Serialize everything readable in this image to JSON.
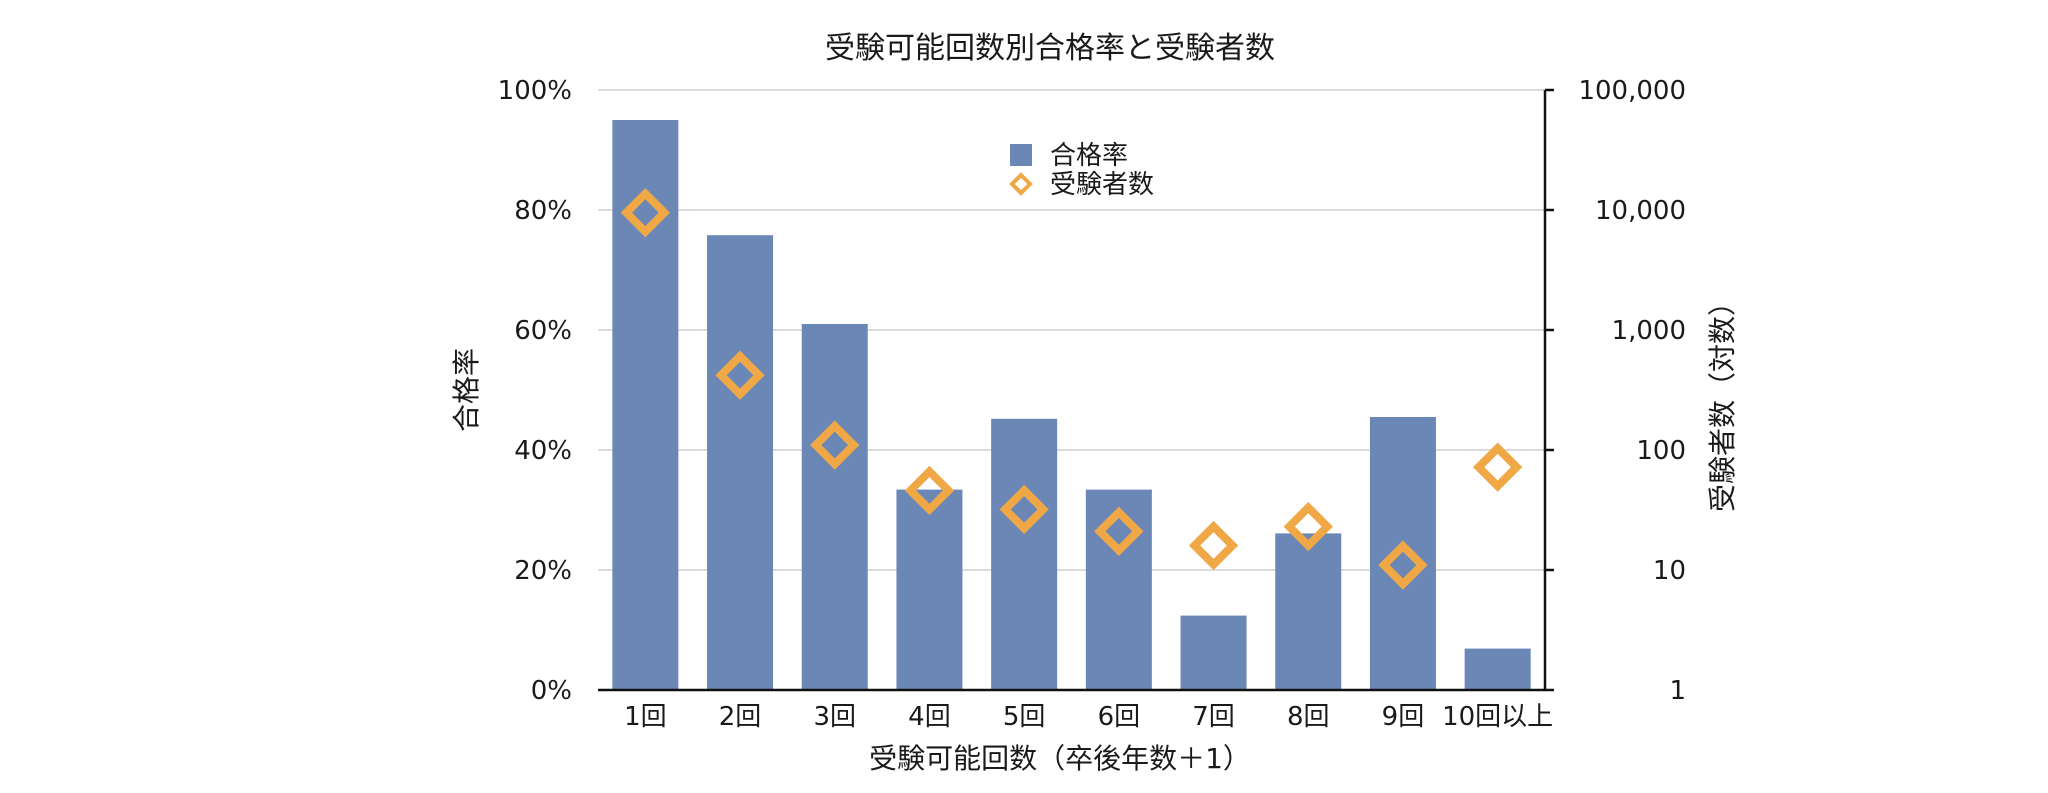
{
  "chart_data": {
    "type": "bar",
    "title": "受験可能回数別合格率と受験者数",
    "xlabel": "受験可能回数（卒後年数＋1）",
    "ylabel_left": "合格率",
    "ylabel_right": "受験者数（対数）",
    "categories": [
      "1回",
      "2回",
      "3回",
      "4回",
      "5回",
      "6回",
      "7回",
      "8回",
      "9回",
      "10回以上"
    ],
    "y_left_ticks": [
      "0%",
      "20%",
      "40%",
      "60%",
      "80%",
      "100%"
    ],
    "y_right_ticks": [
      "1",
      "10",
      "100",
      "1,000",
      "10,000",
      "100,000"
    ],
    "ylim_left": [
      0,
      100
    ],
    "ylim_right": [
      1,
      100000
    ],
    "y_right_scale": "log",
    "grid": true,
    "legend_position": "top-center",
    "series": [
      {
        "name": "合格率",
        "kind": "bar",
        "axis": "left",
        "unit": "%",
        "color": "#6a87b6",
        "values": [
          95,
          75.8,
          61,
          33.4,
          45.2,
          33.4,
          12.4,
          26.1,
          45.5,
          6.9
        ]
      },
      {
        "name": "受験者数",
        "kind": "marker",
        "marker": "diamond-open",
        "axis": "right",
        "color": "#f0a847",
        "values": [
          9500,
          420,
          110,
          46,
          32,
          21,
          16,
          23,
          11,
          72
        ]
      }
    ]
  }
}
